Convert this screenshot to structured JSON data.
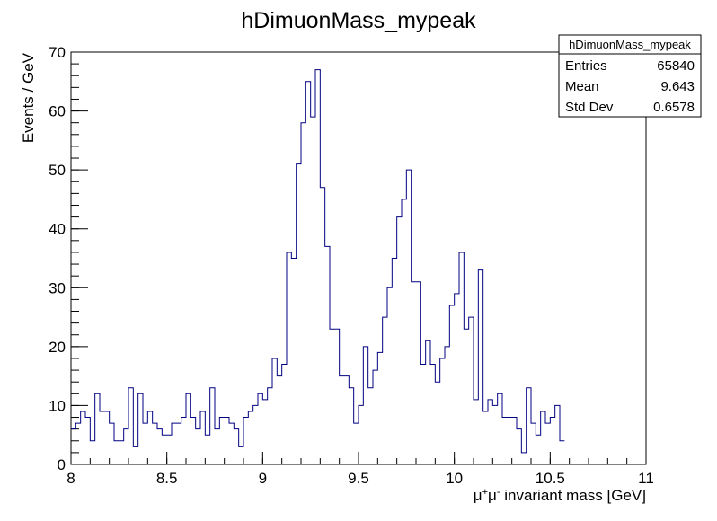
{
  "chart_data": {
    "type": "histogram",
    "title": "hDimuonMass_mypeak",
    "xlabel_parts": [
      "μ",
      "+",
      "μ",
      "-",
      " invariant mass [GeV]"
    ],
    "ylabel": "Events / GeV",
    "xlim": [
      8,
      11
    ],
    "ylim": [
      0,
      70
    ],
    "x_ticks": [
      8,
      8.5,
      9,
      9.5,
      10,
      10.5,
      11
    ],
    "x_tick_labels": [
      "8",
      "8.5",
      "9",
      "9.5",
      "10",
      "10.5",
      "11"
    ],
    "y_ticks": [
      0,
      10,
      20,
      30,
      40,
      50,
      60,
      70
    ],
    "y_tick_labels": [
      "0",
      "10",
      "20",
      "30",
      "40",
      "50",
      "60",
      "70"
    ],
    "bin_width": 0.025,
    "values": [
      6,
      7,
      9,
      8,
      4,
      12,
      9,
      9,
      7,
      4,
      4,
      6,
      13,
      3,
      12,
      7,
      9,
      7,
      6,
      5,
      5,
      7,
      7,
      8,
      12,
      8,
      6,
      9,
      5,
      13,
      6,
      8,
      8,
      7,
      6,
      3,
      8,
      9,
      10,
      12,
      11,
      13,
      18,
      15,
      17,
      36,
      35,
      51,
      58,
      65,
      59,
      67,
      47,
      37,
      23,
      23,
      15,
      15,
      13,
      7,
      10,
      20,
      13,
      16,
      19,
      25,
      30,
      35,
      42,
      45,
      50,
      31,
      31,
      17,
      21,
      17,
      14,
      18,
      20,
      27,
      29,
      36,
      23,
      25,
      11,
      33,
      9,
      11,
      10,
      12,
      8,
      8,
      8,
      6,
      2,
      13,
      7,
      5,
      9,
      7,
      8,
      10,
      4
    ],
    "line_color": "#000080",
    "legend_position": "top-right",
    "stats": {
      "name": "hDimuonMass_mypeak",
      "rows": [
        {
          "label": "Entries",
          "value": "65840"
        },
        {
          "label": "Mean",
          "value": "9.643"
        },
        {
          "label": "Std Dev",
          "value": "0.6578"
        }
      ]
    }
  }
}
